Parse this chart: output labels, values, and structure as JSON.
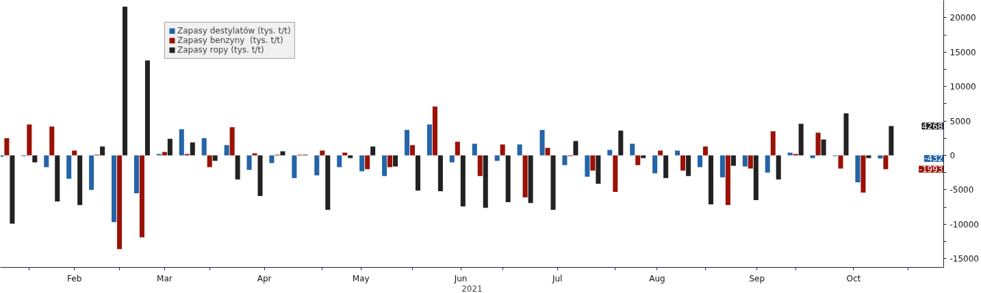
{
  "chart_data": {
    "type": "bar",
    "xlabel": "2021",
    "x": [
      "2021-01-25",
      "2021-02-01",
      "2021-02-08",
      "2021-02-15",
      "2021-02-22",
      "2021-03-01",
      "2021-03-08",
      "2021-03-15",
      "2021-03-22",
      "2021-03-29",
      "2021-04-05",
      "2021-04-12",
      "2021-04-19",
      "2021-04-26",
      "2021-05-03",
      "2021-05-10",
      "2021-05-17",
      "2021-05-24",
      "2021-05-31",
      "2021-06-07",
      "2021-06-14",
      "2021-06-21",
      "2021-06-28",
      "2021-07-05",
      "2021-07-12",
      "2021-07-19",
      "2021-07-26",
      "2021-08-02",
      "2021-08-09",
      "2021-08-16",
      "2021-08-23",
      "2021-08-30",
      "2021-09-06",
      "2021-09-13",
      "2021-09-20",
      "2021-09-27",
      "2021-10-04",
      "2021-10-11",
      "2021-10-18",
      "2021-10-25"
    ],
    "series": [
      {
        "name": "Zapasy destylatów (tys. t/t)",
        "color": "#2464a8",
        "values": [
          -200,
          -100,
          -1700,
          -3400,
          -5000,
          -9700,
          -5500,
          200,
          3800,
          2500,
          1500,
          -2100,
          -1100,
          -3300,
          -2900,
          -1700,
          -2300,
          -3000,
          3700,
          4500,
          -1000,
          1700,
          -800,
          1600,
          3700,
          -1400,
          -3100,
          800,
          1700,
          -2600,
          700,
          -1700,
          -3200,
          -1600,
          -2500,
          400,
          -400,
          -100,
          -3900,
          -432
        ]
      },
      {
        "name": "Zapasy benzyny  (tys. t/t)",
        "color": "#9b1105",
        "values": [
          2500,
          4500,
          4200,
          700,
          100,
          -13600,
          -11900,
          500,
          200,
          -1700,
          4100,
          300,
          100,
          100,
          700,
          400,
          -2000,
          -1700,
          1500,
          7100,
          2000,
          -3000,
          1600,
          -6100,
          1100,
          -100,
          -2200,
          -5300,
          -1400,
          700,
          -2200,
          1300,
          -7200,
          -1900,
          3500,
          200,
          3300,
          -1900,
          -5400,
          -1993
        ]
      },
      {
        "name": "Zapasy ropy (tys. t/t)",
        "color": "#222222",
        "values": [
          -9900,
          -1000,
          -6700,
          -7200,
          1300,
          21600,
          13800,
          2400,
          1900,
          -800,
          -3500,
          -5900,
          600,
          100,
          -7900,
          -400,
          1300,
          -1600,
          -5100,
          -5200,
          -7400,
          -7600,
          -6800,
          -6900,
          -7900,
          2100,
          -4100,
          3600,
          -400,
          -3300,
          -3000,
          -7100,
          -1500,
          -6500,
          -3500,
          4600,
          2300,
          6100,
          -400,
          4268
        ]
      }
    ],
    "xlim": [
      "2021-01-23",
      "2021-11-12"
    ],
    "xticks": [
      {
        "value": "2021-02-01",
        "label": null
      },
      {
        "value": "2021-02-15",
        "label": "Feb"
      },
      {
        "value": "2021-03-01",
        "label": null
      },
      {
        "value": "2021-03-15",
        "label": "Mar"
      },
      {
        "value": "2021-03-29",
        "label": null
      },
      {
        "value": "2021-04-15",
        "label": "Apr"
      },
      {
        "value": "2021-05-03",
        "label": null
      },
      {
        "value": "2021-05-15",
        "label": "May"
      },
      {
        "value": "2021-05-31",
        "label": null
      },
      {
        "value": "2021-06-15",
        "label": "Jun"
      },
      {
        "value": "2021-06-28",
        "label": null
      },
      {
        "value": "2021-07-15",
        "label": "Jul"
      },
      {
        "value": "2021-08-02",
        "label": null
      },
      {
        "value": "2021-08-15",
        "label": "Aug"
      },
      {
        "value": "2021-08-30",
        "label": null
      },
      {
        "value": "2021-09-15",
        "label": "Sep"
      },
      {
        "value": "2021-09-27",
        "label": null
      },
      {
        "value": "2021-10-15",
        "label": "Oct"
      },
      {
        "value": "2021-11-01",
        "label": null
      }
    ],
    "ylim": [
      -16260,
      22520
    ],
    "yticks": [
      -15000,
      {
        "value": -12500,
        "label": null
      },
      -10000,
      {
        "value": -7500,
        "label": null
      },
      -5000,
      {
        "value": -2500,
        "label": null
      },
      0,
      {
        "value": 2500,
        "label": null
      },
      5000,
      {
        "value": 7500,
        "label": null
      },
      10000,
      {
        "value": 12500,
        "label": null
      },
      15000,
      {
        "value": 17500,
        "label": null
      },
      20000
    ],
    "annotations": [
      "-432",
      "-1993",
      "4268"
    ],
    "grid": false,
    "legend": "top left"
  }
}
